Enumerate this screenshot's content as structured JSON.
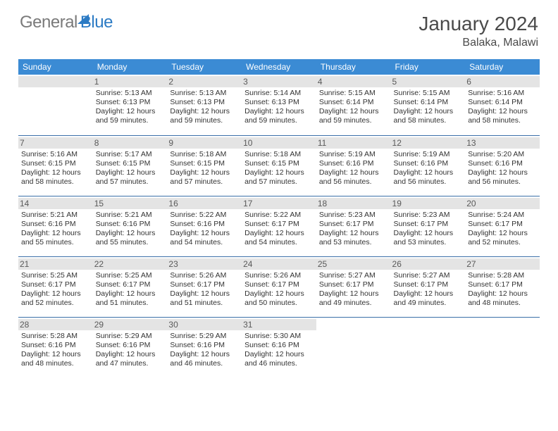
{
  "brand": {
    "text1": "General",
    "text2": "Blue"
  },
  "title": "January 2024",
  "location": "Balaka, Malawi",
  "colors": {
    "header_bg": "#3b8bd4",
    "header_text": "#ffffff",
    "row_divider": "#3b6fa8",
    "daynum_bg": "#e4e4e4",
    "text": "#333333",
    "brand_gray": "#7a7a7a",
    "brand_blue": "#2c7bc4"
  },
  "typography": {
    "title_fontsize": 28,
    "location_fontsize": 16,
    "dayheader_fontsize": 12,
    "cell_fontsize": 10.5
  },
  "day_headers": [
    "Sunday",
    "Monday",
    "Tuesday",
    "Wednesday",
    "Thursday",
    "Friday",
    "Saturday"
  ],
  "weeks": [
    [
      {
        "n": "",
        "sr": "",
        "ss": "",
        "d1": "",
        "d2": ""
      },
      {
        "n": "1",
        "sr": "Sunrise: 5:13 AM",
        "ss": "Sunset: 6:13 PM",
        "d1": "Daylight: 12 hours",
        "d2": "and 59 minutes."
      },
      {
        "n": "2",
        "sr": "Sunrise: 5:13 AM",
        "ss": "Sunset: 6:13 PM",
        "d1": "Daylight: 12 hours",
        "d2": "and 59 minutes."
      },
      {
        "n": "3",
        "sr": "Sunrise: 5:14 AM",
        "ss": "Sunset: 6:13 PM",
        "d1": "Daylight: 12 hours",
        "d2": "and 59 minutes."
      },
      {
        "n": "4",
        "sr": "Sunrise: 5:15 AM",
        "ss": "Sunset: 6:14 PM",
        "d1": "Daylight: 12 hours",
        "d2": "and 59 minutes."
      },
      {
        "n": "5",
        "sr": "Sunrise: 5:15 AM",
        "ss": "Sunset: 6:14 PM",
        "d1": "Daylight: 12 hours",
        "d2": "and 58 minutes."
      },
      {
        "n": "6",
        "sr": "Sunrise: 5:16 AM",
        "ss": "Sunset: 6:14 PM",
        "d1": "Daylight: 12 hours",
        "d2": "and 58 minutes."
      }
    ],
    [
      {
        "n": "7",
        "sr": "Sunrise: 5:16 AM",
        "ss": "Sunset: 6:15 PM",
        "d1": "Daylight: 12 hours",
        "d2": "and 58 minutes."
      },
      {
        "n": "8",
        "sr": "Sunrise: 5:17 AM",
        "ss": "Sunset: 6:15 PM",
        "d1": "Daylight: 12 hours",
        "d2": "and 57 minutes."
      },
      {
        "n": "9",
        "sr": "Sunrise: 5:18 AM",
        "ss": "Sunset: 6:15 PM",
        "d1": "Daylight: 12 hours",
        "d2": "and 57 minutes."
      },
      {
        "n": "10",
        "sr": "Sunrise: 5:18 AM",
        "ss": "Sunset: 6:15 PM",
        "d1": "Daylight: 12 hours",
        "d2": "and 57 minutes."
      },
      {
        "n": "11",
        "sr": "Sunrise: 5:19 AM",
        "ss": "Sunset: 6:16 PM",
        "d1": "Daylight: 12 hours",
        "d2": "and 56 minutes."
      },
      {
        "n": "12",
        "sr": "Sunrise: 5:19 AM",
        "ss": "Sunset: 6:16 PM",
        "d1": "Daylight: 12 hours",
        "d2": "and 56 minutes."
      },
      {
        "n": "13",
        "sr": "Sunrise: 5:20 AM",
        "ss": "Sunset: 6:16 PM",
        "d1": "Daylight: 12 hours",
        "d2": "and 56 minutes."
      }
    ],
    [
      {
        "n": "14",
        "sr": "Sunrise: 5:21 AM",
        "ss": "Sunset: 6:16 PM",
        "d1": "Daylight: 12 hours",
        "d2": "and 55 minutes."
      },
      {
        "n": "15",
        "sr": "Sunrise: 5:21 AM",
        "ss": "Sunset: 6:16 PM",
        "d1": "Daylight: 12 hours",
        "d2": "and 55 minutes."
      },
      {
        "n": "16",
        "sr": "Sunrise: 5:22 AM",
        "ss": "Sunset: 6:16 PM",
        "d1": "Daylight: 12 hours",
        "d2": "and 54 minutes."
      },
      {
        "n": "17",
        "sr": "Sunrise: 5:22 AM",
        "ss": "Sunset: 6:17 PM",
        "d1": "Daylight: 12 hours",
        "d2": "and 54 minutes."
      },
      {
        "n": "18",
        "sr": "Sunrise: 5:23 AM",
        "ss": "Sunset: 6:17 PM",
        "d1": "Daylight: 12 hours",
        "d2": "and 53 minutes."
      },
      {
        "n": "19",
        "sr": "Sunrise: 5:23 AM",
        "ss": "Sunset: 6:17 PM",
        "d1": "Daylight: 12 hours",
        "d2": "and 53 minutes."
      },
      {
        "n": "20",
        "sr": "Sunrise: 5:24 AM",
        "ss": "Sunset: 6:17 PM",
        "d1": "Daylight: 12 hours",
        "d2": "and 52 minutes."
      }
    ],
    [
      {
        "n": "21",
        "sr": "Sunrise: 5:25 AM",
        "ss": "Sunset: 6:17 PM",
        "d1": "Daylight: 12 hours",
        "d2": "and 52 minutes."
      },
      {
        "n": "22",
        "sr": "Sunrise: 5:25 AM",
        "ss": "Sunset: 6:17 PM",
        "d1": "Daylight: 12 hours",
        "d2": "and 51 minutes."
      },
      {
        "n": "23",
        "sr": "Sunrise: 5:26 AM",
        "ss": "Sunset: 6:17 PM",
        "d1": "Daylight: 12 hours",
        "d2": "and 51 minutes."
      },
      {
        "n": "24",
        "sr": "Sunrise: 5:26 AM",
        "ss": "Sunset: 6:17 PM",
        "d1": "Daylight: 12 hours",
        "d2": "and 50 minutes."
      },
      {
        "n": "25",
        "sr": "Sunrise: 5:27 AM",
        "ss": "Sunset: 6:17 PM",
        "d1": "Daylight: 12 hours",
        "d2": "and 49 minutes."
      },
      {
        "n": "26",
        "sr": "Sunrise: 5:27 AM",
        "ss": "Sunset: 6:17 PM",
        "d1": "Daylight: 12 hours",
        "d2": "and 49 minutes."
      },
      {
        "n": "27",
        "sr": "Sunrise: 5:28 AM",
        "ss": "Sunset: 6:17 PM",
        "d1": "Daylight: 12 hours",
        "d2": "and 48 minutes."
      }
    ],
    [
      {
        "n": "28",
        "sr": "Sunrise: 5:28 AM",
        "ss": "Sunset: 6:16 PM",
        "d1": "Daylight: 12 hours",
        "d2": "and 48 minutes."
      },
      {
        "n": "29",
        "sr": "Sunrise: 5:29 AM",
        "ss": "Sunset: 6:16 PM",
        "d1": "Daylight: 12 hours",
        "d2": "and 47 minutes."
      },
      {
        "n": "30",
        "sr": "Sunrise: 5:29 AM",
        "ss": "Sunset: 6:16 PM",
        "d1": "Daylight: 12 hours",
        "d2": "and 46 minutes."
      },
      {
        "n": "31",
        "sr": "Sunrise: 5:30 AM",
        "ss": "Sunset: 6:16 PM",
        "d1": "Daylight: 12 hours",
        "d2": "and 46 minutes."
      },
      {
        "n": "",
        "sr": "",
        "ss": "",
        "d1": "",
        "d2": ""
      },
      {
        "n": "",
        "sr": "",
        "ss": "",
        "d1": "",
        "d2": ""
      },
      {
        "n": "",
        "sr": "",
        "ss": "",
        "d1": "",
        "d2": ""
      }
    ]
  ]
}
